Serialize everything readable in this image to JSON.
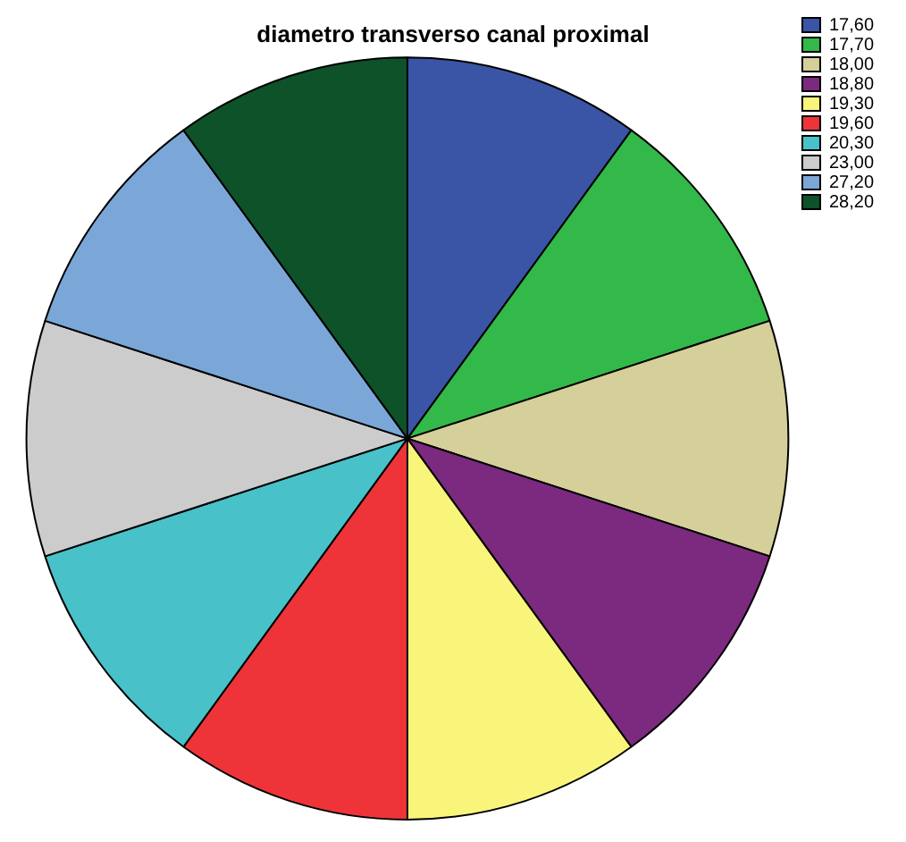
{
  "chart_data": {
    "type": "pie",
    "title": "diametro transverso canal proximal",
    "categories": [
      "17,60",
      "17,70",
      "18,00",
      "18,80",
      "19,30",
      "19,60",
      "20,30",
      "23,00",
      "27,20",
      "28,20"
    ],
    "values": [
      10,
      10,
      10,
      10,
      10,
      10,
      10,
      10,
      10,
      10
    ],
    "colors": [
      "#3a55a5",
      "#33b84a",
      "#d5cf9a",
      "#7b2a7f",
      "#f9f57a",
      "#ee3439",
      "#48c1c8",
      "#cccccc",
      "#7ba7d8",
      "#0e5229"
    ],
    "legend": "top right"
  }
}
